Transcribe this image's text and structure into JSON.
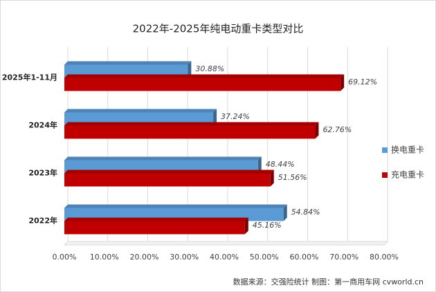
{
  "chart_data": {
    "type": "bar3d",
    "orientation": "horizontal",
    "title": "2022年-2025年纯电动重卡类型对比",
    "categories": [
      "2025年1-11月",
      "2024年",
      "2023年",
      "2022年"
    ],
    "series": [
      {
        "name": "换电重卡",
        "color": "#5b9bd5",
        "values": [
          30.88,
          37.24,
          48.44,
          54.84
        ],
        "value_labels": [
          "30.88%",
          "37.24%",
          "48.44%",
          "54.84%"
        ]
      },
      {
        "name": "充电重卡",
        "color": "#c00000",
        "values": [
          69.12,
          62.76,
          51.56,
          45.16
        ],
        "value_labels": [
          "69.12%",
          "62.76%",
          "51.56%",
          "45.16%"
        ]
      }
    ],
    "xlim": [
      0,
      80
    ],
    "xticks": [
      {
        "value": 0,
        "label": "0.00%"
      },
      {
        "value": 10,
        "label": "10.00%"
      },
      {
        "value": 20,
        "label": "20.00%"
      },
      {
        "value": 30,
        "label": "30.00%"
      },
      {
        "value": 40,
        "label": "40.00%"
      },
      {
        "value": 50,
        "label": "50.00%"
      },
      {
        "value": 60,
        "label": "60.00%"
      },
      {
        "value": 70,
        "label": "70.00%"
      },
      {
        "value": 80,
        "label": "80.00%"
      }
    ],
    "grid": true,
    "legend": "right",
    "source": "数据来源：交强险统计  制图：第一商用车网 cvworld.cn"
  }
}
